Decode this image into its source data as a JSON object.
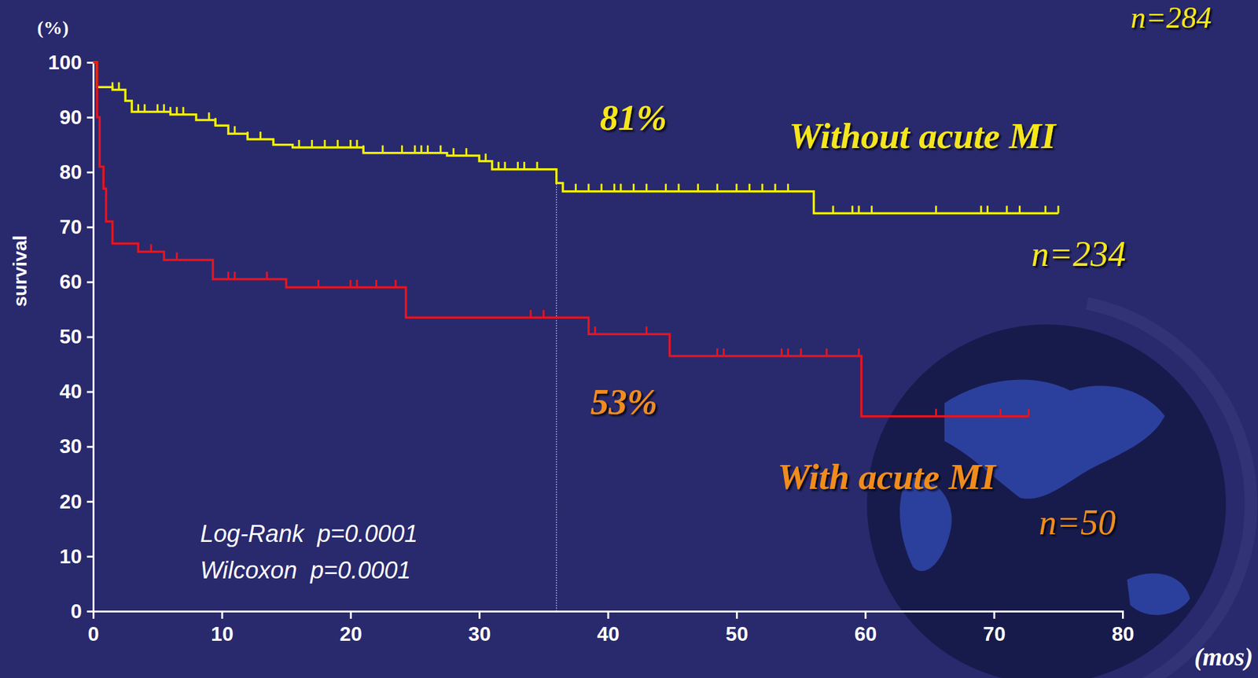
{
  "chart_data": {
    "type": "step",
    "y_unit_label": "(%)",
    "y_label": "survival",
    "x_label": "(mos)",
    "total_n_label": "n=284",
    "xlim": [
      0,
      80
    ],
    "xticks": [
      0,
      10,
      20,
      30,
      40,
      50,
      60,
      70,
      80
    ],
    "ylim": [
      0,
      100
    ],
    "yticks": [
      0,
      10,
      20,
      30,
      40,
      50,
      60,
      70,
      80,
      90,
      100
    ],
    "reference_x": 36,
    "stats": [
      "Log-Rank  p=0.0001",
      "Wilcoxon  p=0.0001"
    ],
    "series": [
      {
        "name": "Without acute MI",
        "color": "#f2f200",
        "n_label": "n=234",
        "label_at_reference": "81%",
        "x": [
          0,
          0.3,
          1.5,
          2.5,
          3,
          6,
          8,
          9.5,
          10.5,
          12,
          14,
          15.5,
          21,
          27.5,
          30,
          31,
          36,
          36.5,
          56,
          75
        ],
        "values": [
          100,
          95.5,
          95,
          93,
          91,
          90.5,
          89.5,
          88.5,
          87,
          86,
          85,
          84.5,
          83.5,
          83,
          82,
          80.5,
          78,
          76.5,
          72.5,
          72.5
        ],
        "censored": [
          1.5,
          2,
          3.5,
          4,
          5,
          5.5,
          6,
          6.5,
          7,
          9,
          9.5,
          11,
          12,
          13,
          16,
          17,
          18,
          19,
          20,
          20.5,
          21,
          22.5,
          24,
          25,
          25.5,
          26,
          27,
          28,
          29,
          30.5,
          31.5,
          32,
          33,
          33.5,
          34.5,
          37.5,
          38.5,
          39.5,
          40.5,
          41,
          42,
          43,
          44.5,
          45.5,
          47,
          48.5,
          50,
          51,
          52,
          53,
          54,
          57.5,
          59,
          59.5,
          60.5,
          65.5,
          69,
          69.5,
          71,
          72,
          74,
          75
        ]
      },
      {
        "name": "With acute MI",
        "color": "#e8141e",
        "n_label": "n=50",
        "label_at_reference": "53%",
        "x": [
          0,
          0.3,
          0.5,
          0.8,
          1,
          1.5,
          3.5,
          5.5,
          9.3,
          15,
          24.3,
          38.5,
          44.8,
          59.7,
          72.7
        ],
        "values": [
          100,
          90,
          81,
          77,
          71,
          67,
          65.5,
          64,
          60.5,
          59,
          53.5,
          50.5,
          46.5,
          35.5,
          35.5
        ],
        "censored": [
          4.5,
          6.5,
          10.5,
          11,
          13.5,
          17.5,
          20,
          20.5,
          22,
          23.5,
          34,
          35,
          39,
          43,
          48.5,
          49,
          53.5,
          54,
          55,
          57,
          59.5,
          65.5,
          70.5,
          72.7
        ]
      }
    ]
  }
}
